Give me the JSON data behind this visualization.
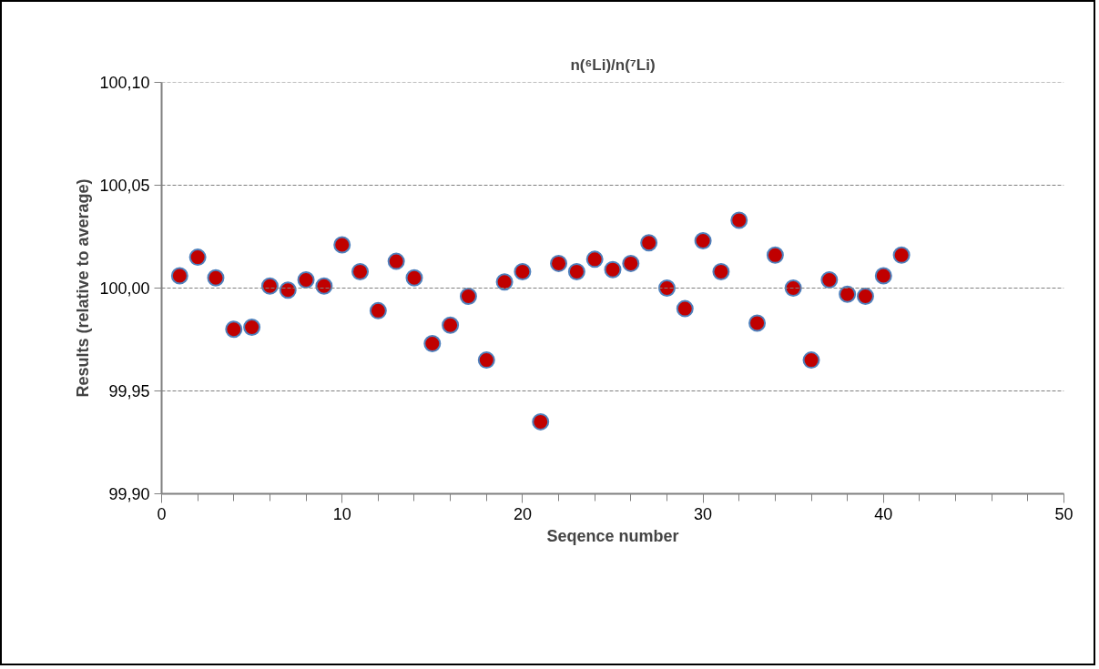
{
  "chart_data": {
    "type": "scatter",
    "title": "n(⁶Li)/n(⁷Li)",
    "xlabel": "Seqence number",
    "ylabel": "Results (relative to average)",
    "x": [
      1,
      2,
      3,
      4,
      5,
      6,
      7,
      8,
      9,
      10,
      11,
      12,
      13,
      14,
      15,
      16,
      17,
      18,
      19,
      20,
      21,
      22,
      23,
      24,
      25,
      26,
      27,
      28,
      29,
      30,
      31,
      32,
      33,
      34,
      35,
      36,
      37,
      38,
      39,
      40,
      41
    ],
    "series": [
      {
        "color": "#c00000",
        "values": [
          100.006,
          100.015,
          100.005,
          99.98,
          99.981,
          100.001,
          99.999,
          100.004,
          100.001,
          100.021,
          100.008,
          99.989,
          100.013,
          100.005,
          99.973,
          99.982,
          99.996,
          99.965,
          100.003,
          100.008,
          99.935,
          100.012,
          100.008,
          100.014,
          100.009,
          100.012,
          100.022,
          100.0,
          99.99,
          100.023,
          100.008,
          100.033,
          99.983,
          100.016,
          100.0,
          99.965,
          100.004,
          99.997,
          99.996,
          100.006,
          100.016
        ]
      }
    ],
    "xlim": [
      0,
      50
    ],
    "xticks": [
      0,
      10,
      20,
      30,
      40,
      50
    ],
    "ylim": [
      99.9,
      100.1
    ],
    "yticks": [
      {
        "value": 99.9,
        "label": "99,90"
      },
      {
        "value": 99.95,
        "label": "99,95"
      },
      {
        "value": 100.0,
        "label": "100,00"
      },
      {
        "value": 100.05,
        "label": "100,05"
      },
      {
        "value": 100.1,
        "label": "100,10"
      }
    ],
    "grid": "y",
    "marker": "circle"
  }
}
